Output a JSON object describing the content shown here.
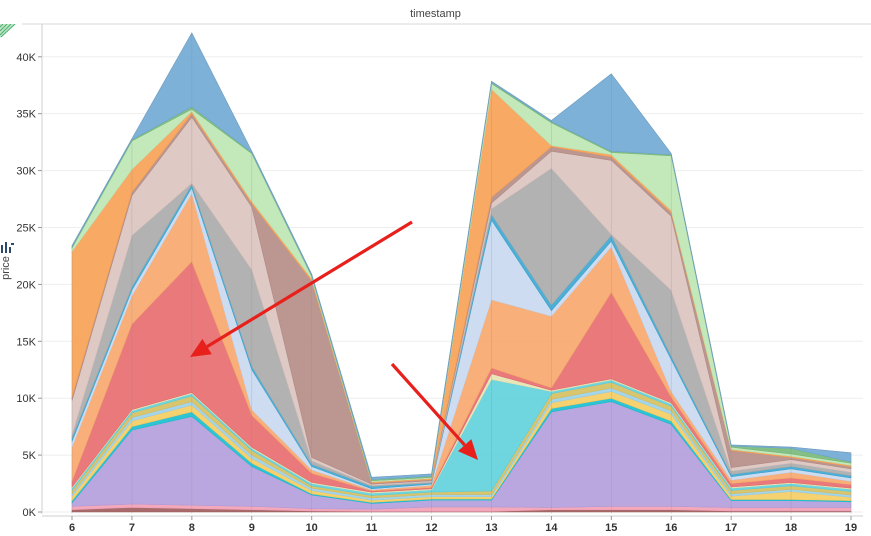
{
  "header": {
    "title": "timestamp"
  },
  "icons": {
    "corner": "striped-triangle-icon",
    "legend": "legend-toggle-icon"
  },
  "chart_data": {
    "type": "area",
    "stacked": true,
    "xlabel": "timestamp",
    "ylabel": "price",
    "x": [
      6,
      7,
      8,
      9,
      10,
      11,
      12,
      13,
      14,
      15,
      16,
      17,
      18,
      19
    ],
    "ylim": [
      0,
      42000
    ],
    "yticks": [
      "0K",
      "5K",
      "10K",
      "15K",
      "20K",
      "25K",
      "30K",
      "35K",
      "40K"
    ],
    "ytick_values": [
      0,
      5000,
      10000,
      15000,
      20000,
      25000,
      30000,
      35000,
      40000
    ],
    "grid": "horizontal",
    "legend": "none",
    "annotations": [
      "red arrow pointing to pink band near x=8",
      "red arrow pointing to cyan band near x=13"
    ],
    "series": [
      {
        "color": "#9e5a5a",
        "values": [
          200,
          400,
          300,
          200,
          100,
          50,
          50,
          50,
          200,
          200,
          200,
          100,
          100,
          100
        ]
      },
      {
        "color": "#f2a0b4",
        "values": [
          300,
          300,
          300,
          300,
          200,
          200,
          400,
          400,
          200,
          300,
          300,
          300,
          300,
          300
        ]
      },
      {
        "color": "#b39ddb",
        "values": [
          300,
          6500,
          7800,
          3500,
          1200,
          500,
          600,
          600,
          8400,
          9200,
          7200,
          600,
          600,
          500
        ]
      },
      {
        "color": "#17becf",
        "values": [
          200,
          300,
          400,
          300,
          100,
          100,
          100,
          100,
          300,
          300,
          300,
          100,
          100,
          100
        ]
      },
      {
        "color": "#f5cc5f",
        "values": [
          400,
          500,
          600,
          400,
          300,
          200,
          200,
          200,
          500,
          600,
          600,
          300,
          700,
          300
        ]
      },
      {
        "color": "#9ad0e8",
        "values": [
          200,
          300,
          300,
          300,
          200,
          200,
          200,
          200,
          300,
          300,
          300,
          200,
          200,
          200
        ]
      },
      {
        "color": "#d6bf5f",
        "values": [
          300,
          400,
          500,
          400,
          200,
          200,
          200,
          300,
          500,
          500,
          400,
          300,
          300,
          300
        ]
      },
      {
        "color": "#5fd0dc",
        "values": [
          200,
          200,
          200,
          200,
          200,
          200,
          200,
          9800,
          200,
          200,
          200,
          200,
          200,
          200
        ]
      },
      {
        "color": "#e6e3b0",
        "values": [
          100,
          100,
          100,
          100,
          100,
          100,
          100,
          500,
          100,
          100,
          100,
          100,
          100,
          100
        ]
      },
      {
        "color": "#e86a6e",
        "values": [
          500,
          7500,
          11500,
          2800,
          800,
          100,
          100,
          500,
          200,
          7600,
          500,
          300,
          400,
          300
        ]
      },
      {
        "color": "#f7a66a",
        "values": [
          3000,
          2500,
          6000,
          500,
          300,
          100,
          200,
          6000,
          6300,
          4000,
          500,
          300,
          500,
          300
        ]
      },
      {
        "color": "#c8d8ef",
        "values": [
          500,
          500,
          500,
          3500,
          300,
          100,
          100,
          7000,
          500,
          500,
          2800,
          300,
          300,
          300
        ]
      },
      {
        "color": "#3aa6d0",
        "values": [
          300,
          300,
          300,
          300,
          200,
          200,
          100,
          500,
          500,
          500,
          300,
          200,
          200,
          200
        ]
      },
      {
        "color": "#aaaaaa",
        "values": [
          300,
          4500,
          100,
          8500,
          300,
          100,
          100,
          500,
          12000,
          100,
          5800,
          300,
          300,
          300
        ]
      },
      {
        "color": "#dbc3be",
        "values": [
          3000,
          3500,
          5800,
          5500,
          300,
          100,
          100,
          500,
          1500,
          6500,
          6500,
          300,
          300,
          300
        ]
      },
      {
        "color": "#b58b84",
        "values": [
          300,
          300,
          300,
          300,
          15500,
          100,
          100,
          500,
          400,
          300,
          300,
          1500,
          200,
          200
        ]
      },
      {
        "color": "#f7a052",
        "values": [
          12800,
          2000,
          200,
          200,
          200,
          100,
          100,
          9500,
          100,
          200,
          200,
          100,
          100,
          100
        ]
      },
      {
        "color": "#bde5b3",
        "values": [
          300,
          2500,
          200,
          4200,
          200,
          100,
          100,
          500,
          2000,
          200,
          4800,
          200,
          200,
          200
        ]
      },
      {
        "color": "#77b878",
        "values": [
          100,
          100,
          200,
          100,
          100,
          100,
          100,
          100,
          100,
          100,
          100,
          100,
          500,
          100
        ]
      },
      {
        "color": "#6fa8d4",
        "values": [
          100,
          100,
          6500,
          100,
          100,
          200,
          200,
          100,
          100,
          6800,
          100,
          100,
          100,
          800
        ]
      }
    ]
  }
}
